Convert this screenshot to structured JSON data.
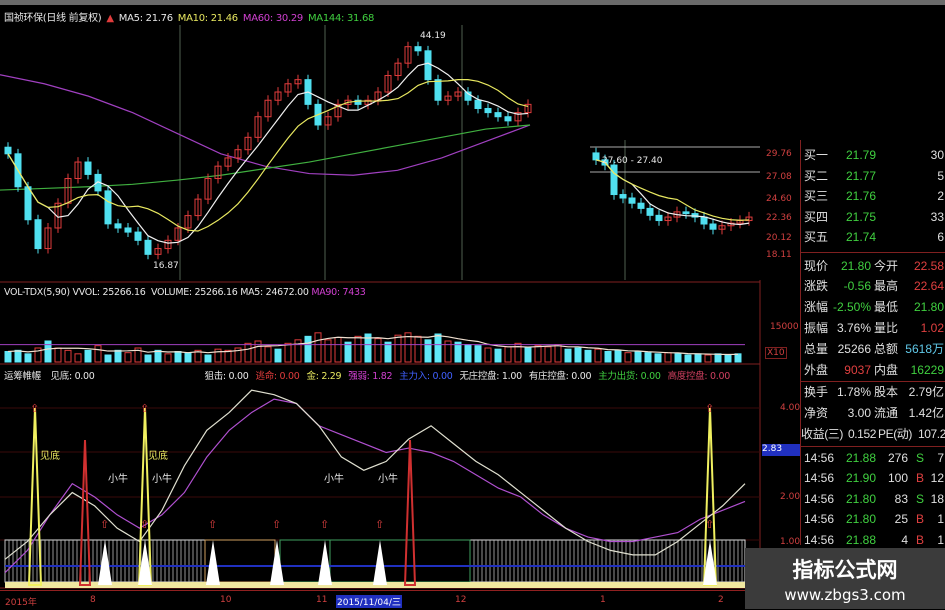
{
  "header": {
    "title": "国祯环保(日线 前复权)",
    "ma5": "MA5: 21.76",
    "ma10": "MA10: 21.46",
    "ma60": "MA60: 30.29",
    "ma144": "MA144: 31.68"
  },
  "main_chart": {
    "high_label": "44.19",
    "low_label": "16.87",
    "range_label": "27.60 - 27.40",
    "price_axis": [
      "29.76",
      "27.08",
      "24.60",
      "22.36",
      "20.12",
      "18.11"
    ]
  },
  "volume": {
    "name": "VOL-TDX(5,90)",
    "vvol": "VVOL: 25266.16",
    "volume": "VOLUME: 25266.16",
    "ma5": "MA5: 24672.00",
    "ma90": "MA90: 7433",
    "axis": [
      "15000",
      "X10"
    ]
  },
  "indicator": {
    "name": "运筹帷幄",
    "items": [
      {
        "text": "见底: 0.00",
        "color": "#e8e8e8"
      },
      {
        "text": "狙击: 0.00",
        "color": "#e8e8e8"
      },
      {
        "text": "逃命: 0.00",
        "color": "#e03c3c"
      },
      {
        "text": "金: 2.29",
        "color": "#e8e860"
      },
      {
        "text": "强弱: 1.82",
        "color": "#d040d0"
      },
      {
        "text": "主力入: 0.00",
        "color": "#4060ff"
      },
      {
        "text": "无庄控盘: 1.00",
        "color": "#e8e8e8"
      },
      {
        "text": "有庄控盘: 0.00",
        "color": "#e8e8e8"
      },
      {
        "text": "主力出货: 0.00",
        "color": "#40d040"
      },
      {
        "text": "高度控盘: 0.00",
        "color": "#d04060"
      }
    ],
    "axis": [
      "4.00",
      "2.83",
      "2.00",
      "1.00"
    ],
    "signal_labels": [
      "见底",
      "见底",
      "小牛",
      "小牛",
      "小牛",
      "小牛"
    ]
  },
  "quotes": {
    "bids": [
      {
        "label": "买一",
        "price": "21.79",
        "qty": "30"
      },
      {
        "label": "买二",
        "price": "21.77",
        "qty": "5"
      },
      {
        "label": "买三",
        "price": "21.76",
        "qty": "2"
      },
      {
        "label": "买四",
        "price": "21.75",
        "qty": "33"
      },
      {
        "label": "买五",
        "price": "21.74",
        "qty": "6"
      }
    ],
    "stats": [
      {
        "l1": "现价",
        "v1": "21.80",
        "c1": "#40d040",
        "l2": "今开",
        "v2": "22.58",
        "c2": "#e04040"
      },
      {
        "l1": "涨跌",
        "v1": "-0.56",
        "c1": "#40d040",
        "l2": "最高",
        "v2": "22.64",
        "c2": "#e04040"
      },
      {
        "l1": "涨幅",
        "v1": "-2.50%",
        "c1": "#40d040",
        "l2": "最低",
        "v2": "21.80",
        "c2": "#40d040"
      },
      {
        "l1": "振幅",
        "v1": "3.76%",
        "c1": "#e0e0e0",
        "l2": "量比",
        "v2": "1.02",
        "c2": "#e04040"
      },
      {
        "l1": "总量",
        "v1": "25266",
        "c1": "#e0e0e0",
        "l2": "总额",
        "v2": "5618万",
        "c2": "#60c8e8"
      },
      {
        "l1": "外盘",
        "v1": "9037",
        "c1": "#e04040",
        "l2": "内盘",
        "v2": "16229",
        "c2": "#40d040"
      },
      {
        "l1": "换手",
        "v1": "1.78%",
        "c1": "#e0e0e0",
        "l2": "股本",
        "v2": "2.79亿",
        "c2": "#e0e0e0"
      },
      {
        "l1": "净资",
        "v1": "3.00",
        "c1": "#e0e0e0",
        "l2": "流通",
        "v2": "1.42亿",
        "c2": "#e0e0e0"
      },
      {
        "l1": "收益(三)",
        "v1": "0.152",
        "c1": "#e0e0e0",
        "l2": "PE(动)",
        "v2": "107.2",
        "c2": "#e0e0e0"
      }
    ],
    "trades": [
      {
        "time": "14:56",
        "price": "21.88",
        "qty": "276",
        "side": "S",
        "n": "7"
      },
      {
        "time": "14:56",
        "price": "21.90",
        "qty": "100",
        "side": "B",
        "n": "12"
      },
      {
        "time": "14:56",
        "price": "21.80",
        "qty": "83",
        "side": "S",
        "n": "18"
      },
      {
        "time": "14:56",
        "price": "21.80",
        "qty": "25",
        "side": "B",
        "n": "1"
      },
      {
        "time": "14:56",
        "price": "21.88",
        "qty": "4",
        "side": "B",
        "n": "1"
      }
    ],
    "colors": {
      "B": "#e04040",
      "S": "#40d040"
    }
  },
  "timeline": {
    "labels": [
      "2015年",
      "8",
      "10",
      "11",
      "2015/11/04/三",
      "12",
      "1",
      "2"
    ]
  },
  "watermark": {
    "line1": "指标公式网",
    "line2": "www.zbgs3.com"
  },
  "chart_data": [
    {
      "type": "candlestick",
      "title": "国祯环保(日线 前复权)",
      "closes": [
        30,
        26,
        22,
        18.5,
        21,
        24,
        27,
        29,
        27.5,
        25.5,
        21.5,
        21,
        20.5,
        19.5,
        17.8,
        18.5,
        19.5,
        21,
        22.5,
        24.5,
        27,
        28.5,
        29.5,
        30.5,
        32,
        34.5,
        36.5,
        37.5,
        38.5,
        39,
        36,
        33.5,
        34.5,
        36,
        36.5,
        36,
        36.5,
        37.5,
        39.5,
        41,
        43,
        42.5,
        39,
        36.5,
        37,
        37.5,
        36.5,
        35.5,
        35,
        34.5,
        34,
        35,
        36
      ],
      "ma60": [
        39.6,
        38.5,
        37,
        35,
        32.5,
        30,
        28.5,
        27.6,
        27.4,
        28,
        29.5,
        31.5,
        33.5
      ],
      "ma144": [
        25.6,
        25.8,
        26,
        26.3,
        26.8,
        27.4,
        28.2,
        29,
        30,
        31,
        32,
        33,
        33.5
      ],
      "annotations": [
        "44.19",
        "16.87"
      ],
      "colors": {
        "up": "#e03c3c",
        "down": "#50e0f0",
        "ma5": "#f0f0f0",
        "ma10": "#e8e860",
        "ma60": "#a040c0",
        "ma144": "#40b040"
      }
    },
    {
      "type": "candlestick",
      "closes": [
        29.2,
        28.6,
        25.2,
        24.8,
        24.2,
        23.6,
        22.8,
        22.2,
        22.6,
        23.2,
        23,
        22.6,
        21.8,
        21.2,
        21.6,
        21.9,
        22.2,
        22.6
      ],
      "yticks": [
        29.76,
        27.08,
        24.6,
        22.36,
        20.12,
        18.11
      ],
      "annotations": [
        "27.60 - 27.40"
      ]
    },
    {
      "type": "bar",
      "title": "VOL-TDX(5,90)",
      "values": [
        4500,
        5000,
        3500,
        6000,
        9000,
        6000,
        5000,
        3500,
        5000,
        7000,
        3000,
        5000,
        4000,
        6000,
        3000,
        5000,
        3500,
        4500,
        4000,
        5000,
        3000,
        5500,
        5000,
        6000,
        8000,
        9000,
        6500,
        5500,
        8000,
        9500,
        11000,
        12500,
        9500,
        10500,
        8500,
        11000,
        12000,
        10000,
        8500,
        11500,
        12500,
        11000,
        9500,
        12000,
        9000,
        8500,
        7500,
        7000,
        6000,
        5500,
        6500,
        8000,
        6000,
        7000,
        6500,
        7500,
        5500,
        6000,
        5000,
        5500,
        4500,
        5000,
        4000,
        4500,
        4000,
        3500,
        4000,
        3500,
        3000,
        3500,
        3000,
        3500,
        3000,
        3500
      ],
      "up": [
        0,
        0,
        0,
        1,
        0,
        1,
        1,
        1,
        0,
        1,
        0,
        0,
        1,
        1,
        0,
        0,
        1,
        0,
        0,
        1,
        0,
        1,
        1,
        1,
        1,
        1,
        1,
        0,
        1,
        1,
        0,
        1,
        1,
        1,
        0,
        1,
        0,
        1,
        0,
        1,
        1,
        1,
        0,
        0,
        1,
        0,
        0,
        0,
        1,
        0,
        1,
        1,
        0,
        1,
        1,
        1,
        0,
        0,
        0,
        1,
        0,
        0,
        1,
        0,
        0,
        0,
        1,
        0,
        0,
        0,
        1,
        0,
        0,
        0
      ],
      "ylim": [
        0,
        15000
      ],
      "colors": {
        "up": "#e03c3c",
        "down": "#60e8f8"
      }
    },
    {
      "type": "line",
      "title": "运筹帷幄",
      "series": [
        {
          "values": [
            0.6,
            1.0,
            1.6,
            2.1,
            1.8,
            1.3,
            1.0,
            1.7,
            2.7,
            3.5,
            3.9,
            4.4,
            4.3,
            4.1,
            3.6,
            2.9,
            2.6,
            2.8,
            3.3,
            3.6,
            3.2,
            2.8,
            2.5,
            2.1,
            1.7,
            1.3,
            1.0,
            0.8,
            0.7,
            0.7,
            1.0,
            1.4,
            1.8,
            2.3
          ]
        },
        {
          "values": [
            0.3,
            0.8,
            1.6,
            2.3,
            2.0,
            1.6,
            1.3,
            1.6,
            2.1,
            2.9,
            3.5,
            3.9,
            4.2,
            4.1,
            3.6,
            3.4,
            3.2,
            3.0,
            3.1,
            3.0,
            2.8,
            2.5,
            2.2,
            2.0,
            1.6,
            1.3,
            1.1,
            1.0,
            1.0,
            1.1,
            1.2,
            1.5,
            1.7,
            1.9
          ]
        }
      ],
      "ylim": [
        0,
        4.5
      ],
      "yticks": [
        4.0,
        2.83,
        2.0,
        1.0
      ],
      "colors": {
        "line1": "#e0e0d0",
        "line2": "#b050d0",
        "spike": "#f0f060",
        "sell_spike": "#d03030"
      }
    }
  ]
}
